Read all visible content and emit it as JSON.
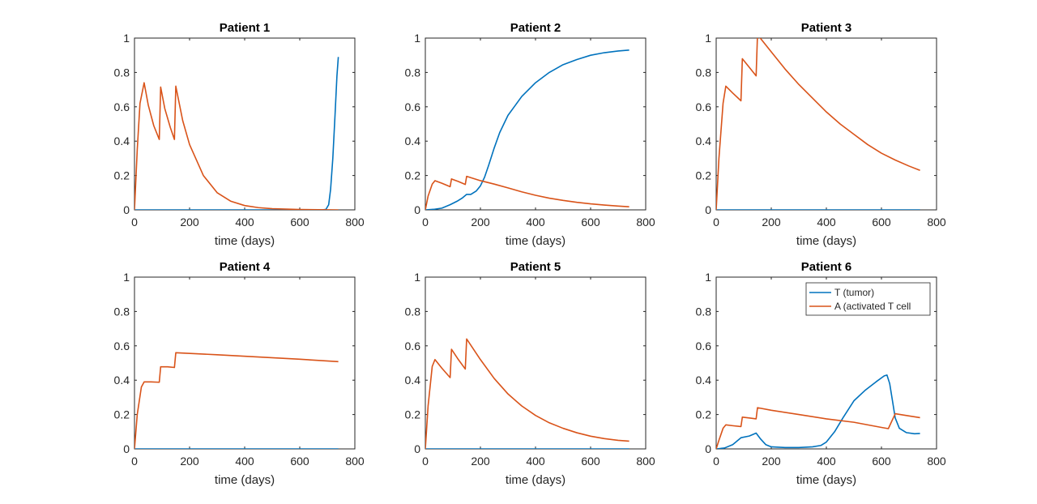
{
  "chart_data": [
    {
      "type": "line",
      "title": "Patient 1",
      "xlabel": "time (days)",
      "ylabel": "",
      "xlim": [
        0,
        800
      ],
      "ylim": [
        0,
        1
      ],
      "xticks": [
        "0",
        "200",
        "400",
        "600",
        "800"
      ],
      "yticks": [
        "0",
        "0.2",
        "0.4",
        "0.6",
        "0.8",
        "1"
      ],
      "series": [
        {
          "key": "T",
          "color": "#0072BD",
          "points": [
            [
              0,
              0
            ],
            [
              680,
              0
            ],
            [
              695,
              0.003
            ],
            [
              705,
              0.03
            ],
            [
              712,
              0.12
            ],
            [
              720,
              0.3
            ],
            [
              728,
              0.55
            ],
            [
              735,
              0.78
            ],
            [
              740,
              0.89
            ]
          ]
        },
        {
          "key": "A",
          "color": "#D95319",
          "points": [
            [
              0,
              0
            ],
            [
              10,
              0.35
            ],
            [
              20,
              0.62
            ],
            [
              35,
              0.74
            ],
            [
              50,
              0.61
            ],
            [
              70,
              0.49
            ],
            [
              90,
              0.41
            ],
            [
              95,
              0.715
            ],
            [
              110,
              0.59
            ],
            [
              130,
              0.48
            ],
            [
              145,
              0.41
            ],
            [
              150,
              0.72
            ],
            [
              175,
              0.52
            ],
            [
              200,
              0.38
            ],
            [
              250,
              0.2
            ],
            [
              300,
              0.1
            ],
            [
              350,
              0.05
            ],
            [
              400,
              0.025
            ],
            [
              450,
              0.013
            ],
            [
              500,
              0.007
            ],
            [
              600,
              0.002
            ],
            [
              700,
              0.0005
            ],
            [
              740,
              0
            ]
          ]
        }
      ]
    },
    {
      "type": "line",
      "title": "Patient 2",
      "xlabel": "time (days)",
      "ylabel": "",
      "xlim": [
        0,
        800
      ],
      "ylim": [
        0,
        1
      ],
      "xticks": [
        "0",
        "200",
        "400",
        "600",
        "800"
      ],
      "yticks": [
        "0",
        "0.2",
        "0.4",
        "0.6",
        "0.8",
        "1"
      ],
      "series": [
        {
          "key": "T",
          "color": "#0072BD",
          "points": [
            [
              0,
              0
            ],
            [
              30,
              0.003
            ],
            [
              60,
              0.01
            ],
            [
              90,
              0.03
            ],
            [
              115,
              0.05
            ],
            [
              135,
              0.07
            ],
            [
              150,
              0.09
            ],
            [
              165,
              0.09
            ],
            [
              185,
              0.11
            ],
            [
              200,
              0.14
            ],
            [
              215,
              0.19
            ],
            [
              230,
              0.26
            ],
            [
              250,
              0.36
            ],
            [
              270,
              0.45
            ],
            [
              300,
              0.55
            ],
            [
              350,
              0.66
            ],
            [
              400,
              0.74
            ],
            [
              450,
              0.8
            ],
            [
              500,
              0.845
            ],
            [
              550,
              0.875
            ],
            [
              600,
              0.9
            ],
            [
              650,
              0.915
            ],
            [
              700,
              0.925
            ],
            [
              740,
              0.93
            ]
          ]
        },
        {
          "key": "A",
          "color": "#D95319",
          "points": [
            [
              0,
              0
            ],
            [
              10,
              0.08
            ],
            [
              25,
              0.15
            ],
            [
              35,
              0.17
            ],
            [
              60,
              0.155
            ],
            [
              90,
              0.135
            ],
            [
              95,
              0.18
            ],
            [
              120,
              0.165
            ],
            [
              145,
              0.148
            ],
            [
              150,
              0.195
            ],
            [
              200,
              0.17
            ],
            [
              250,
              0.15
            ],
            [
              300,
              0.128
            ],
            [
              350,
              0.105
            ],
            [
              400,
              0.085
            ],
            [
              450,
              0.068
            ],
            [
              500,
              0.055
            ],
            [
              550,
              0.044
            ],
            [
              600,
              0.035
            ],
            [
              650,
              0.028
            ],
            [
              700,
              0.022
            ],
            [
              740,
              0.018
            ]
          ]
        }
      ]
    },
    {
      "type": "line",
      "title": "Patient 3",
      "xlabel": "time (days)",
      "ylabel": "",
      "xlim": [
        0,
        800
      ],
      "ylim": [
        0,
        1
      ],
      "xticks": [
        "0",
        "200",
        "400",
        "600",
        "800"
      ],
      "yticks": [
        "0",
        "0.2",
        "0.4",
        "0.6",
        "0.8",
        "1"
      ],
      "series": [
        {
          "key": "T",
          "color": "#0072BD",
          "points": [
            [
              0,
              0
            ],
            [
              740,
              0
            ]
          ]
        },
        {
          "key": "A",
          "color": "#D95319",
          "points": [
            [
              0,
              0
            ],
            [
              10,
              0.3
            ],
            [
              25,
              0.62
            ],
            [
              35,
              0.72
            ],
            [
              60,
              0.68
            ],
            [
              90,
              0.635
            ],
            [
              95,
              0.88
            ],
            [
              120,
              0.83
            ],
            [
              145,
              0.78
            ],
            [
              150,
              1.02
            ],
            [
              160,
              1.0
            ],
            [
              200,
              0.92
            ],
            [
              250,
              0.82
            ],
            [
              300,
              0.73
            ],
            [
              350,
              0.65
            ],
            [
              400,
              0.57
            ],
            [
              450,
              0.5
            ],
            [
              500,
              0.44
            ],
            [
              550,
              0.38
            ],
            [
              600,
              0.33
            ],
            [
              650,
              0.29
            ],
            [
              700,
              0.255
            ],
            [
              740,
              0.23
            ]
          ]
        }
      ]
    },
    {
      "type": "line",
      "title": "Patient 4",
      "xlabel": "time (days)",
      "ylabel": "",
      "xlim": [
        0,
        800
      ],
      "ylim": [
        0,
        1
      ],
      "xticks": [
        "0",
        "200",
        "400",
        "600",
        "800"
      ],
      "yticks": [
        "0",
        "0.2",
        "0.4",
        "0.6",
        "0.8",
        "1"
      ],
      "series": [
        {
          "key": "T",
          "color": "#0072BD",
          "points": [
            [
              0,
              0
            ],
            [
              740,
              0
            ]
          ]
        },
        {
          "key": "A",
          "color": "#D95319",
          "points": [
            [
              0,
              0
            ],
            [
              10,
              0.2
            ],
            [
              25,
              0.36
            ],
            [
              35,
              0.39
            ],
            [
              60,
              0.39
            ],
            [
              90,
              0.388
            ],
            [
              95,
              0.478
            ],
            [
              120,
              0.478
            ],
            [
              145,
              0.474
            ],
            [
              150,
              0.56
            ],
            [
              300,
              0.548
            ],
            [
              450,
              0.535
            ],
            [
              600,
              0.522
            ],
            [
              740,
              0.508
            ]
          ]
        }
      ]
    },
    {
      "type": "line",
      "title": "Patient 5",
      "xlabel": "time (days)",
      "ylabel": "",
      "xlim": [
        0,
        800
      ],
      "ylim": [
        0,
        1
      ],
      "xticks": [
        "0",
        "200",
        "400",
        "600",
        "800"
      ],
      "yticks": [
        "0",
        "0.2",
        "0.4",
        "0.6",
        "0.8",
        "1"
      ],
      "series": [
        {
          "key": "T",
          "color": "#0072BD",
          "points": [
            [
              0,
              0
            ],
            [
              740,
              0
            ]
          ]
        },
        {
          "key": "A",
          "color": "#D95319",
          "points": [
            [
              0,
              0
            ],
            [
              10,
              0.25
            ],
            [
              25,
              0.48
            ],
            [
              35,
              0.52
            ],
            [
              60,
              0.47
            ],
            [
              90,
              0.415
            ],
            [
              95,
              0.58
            ],
            [
              120,
              0.52
            ],
            [
              145,
              0.465
            ],
            [
              150,
              0.64
            ],
            [
              200,
              0.52
            ],
            [
              250,
              0.41
            ],
            [
              300,
              0.32
            ],
            [
              350,
              0.25
            ],
            [
              400,
              0.195
            ],
            [
              450,
              0.152
            ],
            [
              500,
              0.12
            ],
            [
              550,
              0.094
            ],
            [
              600,
              0.074
            ],
            [
              650,
              0.06
            ],
            [
              700,
              0.05
            ],
            [
              740,
              0.045
            ]
          ]
        }
      ]
    },
    {
      "type": "line",
      "title": "Patient 6",
      "xlabel": "time (days)",
      "ylabel": "",
      "xlim": [
        0,
        800
      ],
      "ylim": [
        0,
        1
      ],
      "xticks": [
        "0",
        "200",
        "400",
        "600",
        "800"
      ],
      "yticks": [
        "0",
        "0.2",
        "0.4",
        "0.6",
        "0.8",
        "1"
      ],
      "series": [
        {
          "key": "T",
          "color": "#0072BD",
          "points": [
            [
              0,
              0
            ],
            [
              30,
              0.005
            ],
            [
              60,
              0.025
            ],
            [
              90,
              0.065
            ],
            [
              120,
              0.075
            ],
            [
              145,
              0.092
            ],
            [
              160,
              0.06
            ],
            [
              180,
              0.025
            ],
            [
              200,
              0.012
            ],
            [
              250,
              0.008
            ],
            [
              300,
              0.008
            ],
            [
              350,
              0.012
            ],
            [
              380,
              0.02
            ],
            [
              400,
              0.04
            ],
            [
              430,
              0.1
            ],
            [
              460,
              0.18
            ],
            [
              500,
              0.28
            ],
            [
              540,
              0.34
            ],
            [
              580,
              0.39
            ],
            [
              610,
              0.425
            ],
            [
              620,
              0.43
            ],
            [
              630,
              0.38
            ],
            [
              640,
              0.28
            ],
            [
              650,
              0.18
            ],
            [
              665,
              0.12
            ],
            [
              690,
              0.095
            ],
            [
              720,
              0.088
            ],
            [
              740,
              0.09
            ]
          ]
        },
        {
          "key": "A",
          "color": "#D95319",
          "points": [
            [
              0,
              0
            ],
            [
              10,
              0.05
            ],
            [
              25,
              0.12
            ],
            [
              35,
              0.14
            ],
            [
              60,
              0.135
            ],
            [
              90,
              0.13
            ],
            [
              95,
              0.185
            ],
            [
              120,
              0.18
            ],
            [
              145,
              0.175
            ],
            [
              150,
              0.24
            ],
            [
              200,
              0.225
            ],
            [
              300,
              0.2
            ],
            [
              400,
              0.175
            ],
            [
              500,
              0.155
            ],
            [
              600,
              0.125
            ],
            [
              625,
              0.118
            ],
            [
              650,
              0.205
            ],
            [
              700,
              0.192
            ],
            [
              740,
              0.182
            ]
          ]
        }
      ]
    }
  ],
  "legend": {
    "entries": [
      {
        "key": "T",
        "label": "T (tumor)",
        "color": "#0072BD"
      },
      {
        "key": "A",
        "label": "A (activated T cell",
        "color": "#D95319"
      }
    ]
  }
}
